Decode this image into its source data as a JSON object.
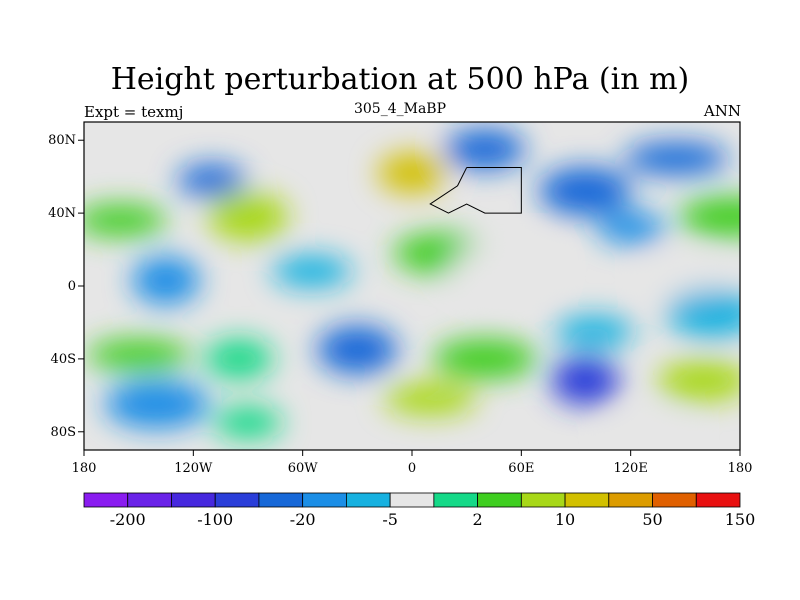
{
  "figure": {
    "title": "Height perturbation at 500 hPa (in m)",
    "left_string": "Expt = texmj",
    "center_string": "305_4_MaBP",
    "right_string": "ANN"
  },
  "map": {
    "projection": "cylindrical-equidistant",
    "lon_range": [
      -180,
      180
    ],
    "lat_range": [
      -90,
      90
    ],
    "lon_ticks": [
      {
        "value": -180,
        "label": "180"
      },
      {
        "value": -120,
        "label": "120W"
      },
      {
        "value": -60,
        "label": "60W"
      },
      {
        "value": 0,
        "label": "0"
      },
      {
        "value": 60,
        "label": "60E"
      },
      {
        "value": 120,
        "label": "120E"
      },
      {
        "value": 180,
        "label": "180"
      }
    ],
    "lat_ticks": [
      {
        "value": 80,
        "label": "80N"
      },
      {
        "value": 40,
        "label": "40N"
      },
      {
        "value": 0,
        "label": "0"
      },
      {
        "value": -40,
        "label": "40S"
      },
      {
        "value": -80,
        "label": "80S"
      }
    ],
    "fill_features": [
      {
        "lon": -110,
        "lat": 58,
        "level": 4
      },
      {
        "lon": 40,
        "lat": 75,
        "level": 4
      },
      {
        "lon": 95,
        "lat": 52,
        "level": 4
      },
      {
        "lon": 145,
        "lat": 70,
        "level": 4
      },
      {
        "lon": 0,
        "lat": 62,
        "level": 11
      },
      {
        "lon": -90,
        "lat": 38,
        "level": 10
      },
      {
        "lon": -160,
        "lat": 36,
        "level": 9
      },
      {
        "lon": 175,
        "lat": 38,
        "level": 9
      },
      {
        "lon": -135,
        "lat": 3,
        "level": 5
      },
      {
        "lon": -55,
        "lat": 8,
        "level": 6
      },
      {
        "lon": 15,
        "lat": 18,
        "level": 9
      },
      {
        "lon": 50,
        "lat": 10,
        "level": 7
      },
      {
        "lon": 120,
        "lat": 32,
        "level": 5
      },
      {
        "lon": 150,
        "lat": 5,
        "level": 7
      },
      {
        "lon": 165,
        "lat": -15,
        "level": 6
      },
      {
        "lon": -150,
        "lat": -38,
        "level": 9
      },
      {
        "lon": -95,
        "lat": -40,
        "level": 8
      },
      {
        "lon": -30,
        "lat": -35,
        "level": 4
      },
      {
        "lon": 10,
        "lat": -62,
        "level": 10
      },
      {
        "lon": 40,
        "lat": -40,
        "level": 9
      },
      {
        "lon": 95,
        "lat": -52,
        "level": 3
      },
      {
        "lon": 100,
        "lat": -25,
        "level": 6
      },
      {
        "lon": 160,
        "lat": -52,
        "level": 10
      },
      {
        "lon": -140,
        "lat": -65,
        "level": 5
      },
      {
        "lon": -90,
        "lat": -75,
        "level": 8
      },
      {
        "lon": 130,
        "lat": -82,
        "level": 7
      }
    ],
    "coastline_outline": [
      [
        30,
        65
      ],
      [
        60,
        65
      ],
      [
        60,
        40
      ],
      [
        40,
        40
      ],
      [
        30,
        45
      ],
      [
        20,
        40
      ],
      [
        10,
        45
      ],
      [
        25,
        55
      ],
      [
        30,
        65
      ]
    ],
    "colors": {
      "background": "#ffffff",
      "frame": "#000000",
      "coastline": "#000000"
    }
  },
  "colorbar": {
    "colors": [
      "#8a1cf0",
      "#6a23e8",
      "#4628de",
      "#2a3ed9",
      "#1768d8",
      "#1b8ee6",
      "#17b1e0",
      "#e6e6e6",
      "#15d988",
      "#3fce20",
      "#a8d818",
      "#d2c000",
      "#dc9c00",
      "#e06000",
      "#e81010"
    ],
    "labels": [
      "-200",
      "-100",
      "-20",
      "-5",
      "2",
      "10",
      "50",
      "150"
    ]
  }
}
